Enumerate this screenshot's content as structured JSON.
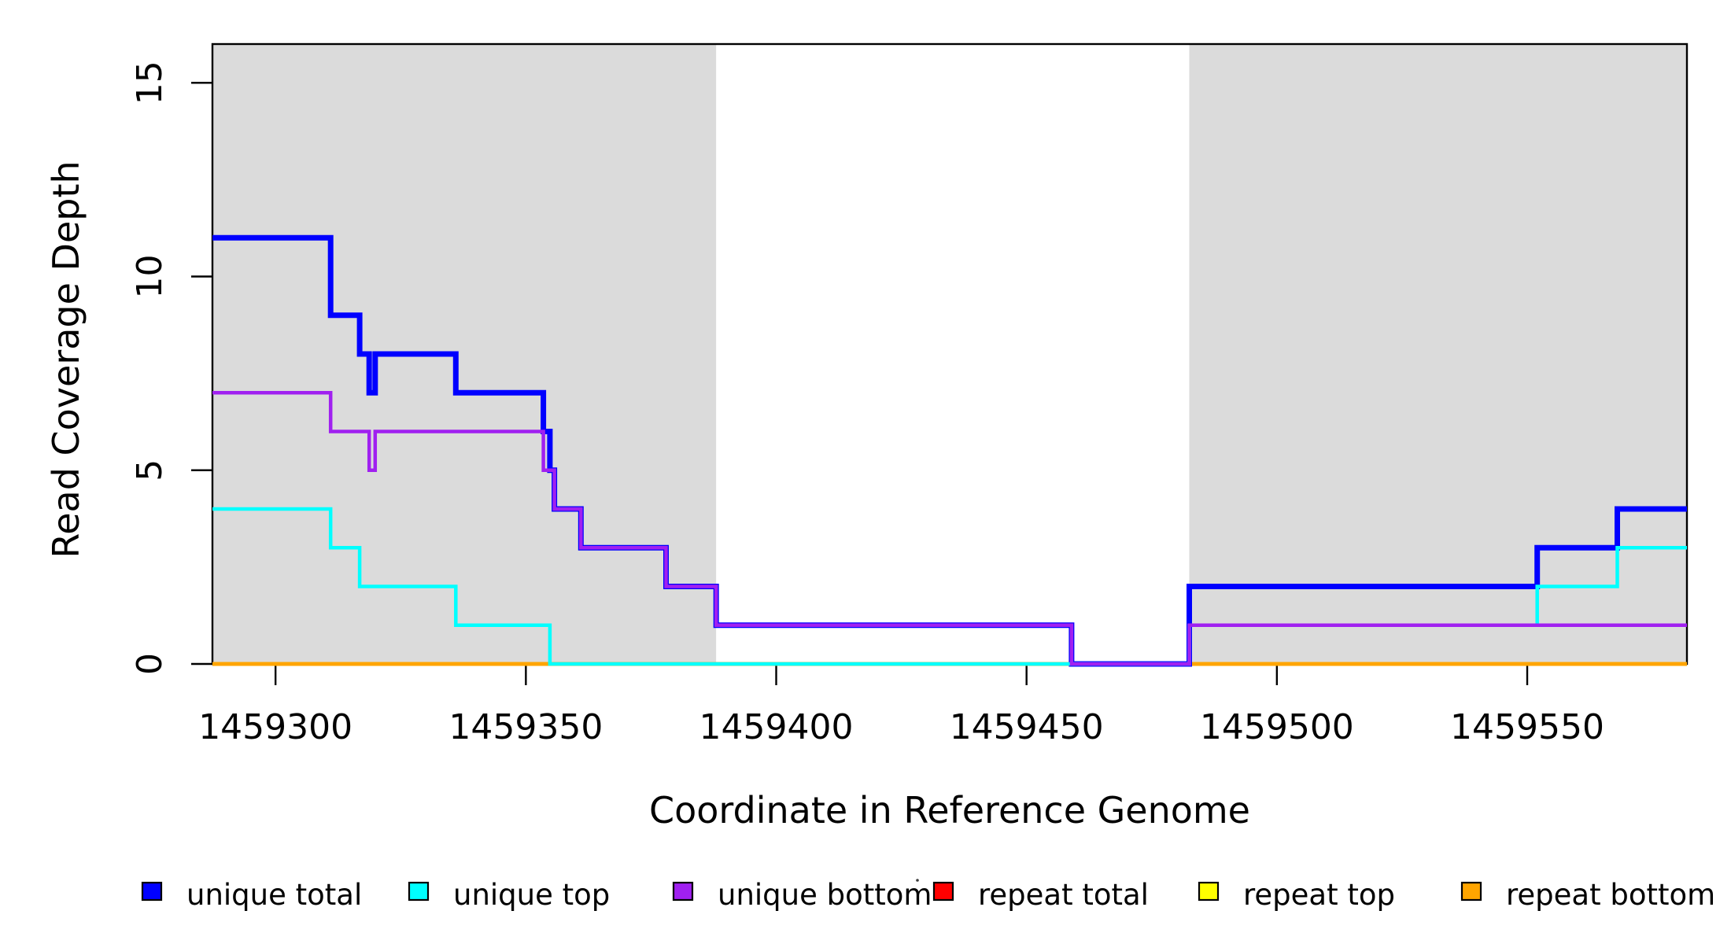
{
  "figure": {
    "kind": "R base graphics step plot",
    "background": "#ffffff"
  },
  "chart_data": {
    "type": "line",
    "step_mode": "step-after",
    "title": "",
    "xlabel": "Coordinate in Reference Genome",
    "ylabel": "Read Coverage Depth",
    "xlim": [
      1459287.4,
      1459581.9
    ],
    "ylim": [
      0,
      16
    ],
    "x_ticks": [
      1459300,
      1459350,
      1459400,
      1459450,
      1459500,
      1459550
    ],
    "x_tick_labels": [
      "1459300",
      "1459350",
      "1459400",
      "1459450",
      "1459500",
      "1459550"
    ],
    "y_ticks": [
      0,
      5,
      10,
      15
    ],
    "y_tick_labels": [
      "0",
      "5",
      "10",
      "15"
    ],
    "grid": false,
    "shaded_regions": [
      {
        "from": 1459287.4,
        "to": 1459388,
        "color": "#DBDBDB"
      },
      {
        "from": 1459482.5,
        "to": 1459581.9,
        "color": "#DBDBDB"
      }
    ],
    "series": [
      {
        "name": "repeat total",
        "color": "#FF0000",
        "width": 4.5,
        "points": [
          [
            1459287.4,
            0
          ]
        ]
      },
      {
        "name": "repeat top",
        "color": "#FFFF00",
        "width": 4.5,
        "points": [
          [
            1459287.4,
            0
          ]
        ]
      },
      {
        "name": "repeat bottom",
        "color": "#FFA500",
        "width": 5,
        "points": [
          [
            1459287.4,
            0
          ]
        ]
      },
      {
        "name": "unique total",
        "color": "#0000FF",
        "width": 7,
        "points": [
          [
            1459287.4,
            11
          ],
          [
            1459311,
            9
          ],
          [
            1459316.8,
            8
          ],
          [
            1459318.7,
            7
          ],
          [
            1459319.9,
            8
          ],
          [
            1459336,
            7
          ],
          [
            1459353.5,
            6
          ],
          [
            1459354.8,
            5
          ],
          [
            1459355.7,
            4
          ],
          [
            1459361,
            3
          ],
          [
            1459378,
            2
          ],
          [
            1459388,
            1
          ],
          [
            1459459,
            0
          ],
          [
            1459482.5,
            2
          ],
          [
            1459552,
            3
          ],
          [
            1459568,
            4
          ]
        ]
      },
      {
        "name": "unique top",
        "color": "#00FFFF",
        "width": 4.5,
        "points": [
          [
            1459287.4,
            4
          ],
          [
            1459311,
            3
          ],
          [
            1459316.8,
            2
          ],
          [
            1459336,
            1
          ],
          [
            1459354.8,
            0
          ],
          [
            1459482.5,
            1
          ],
          [
            1459552,
            2
          ],
          [
            1459568,
            3
          ]
        ]
      },
      {
        "name": "unique bottom",
        "color": "#A020F0",
        "width": 4.5,
        "points": [
          [
            1459287.4,
            7
          ],
          [
            1459311,
            6
          ],
          [
            1459318.7,
            5
          ],
          [
            1459319.9,
            6
          ],
          [
            1459353.5,
            5
          ],
          [
            1459355.7,
            4
          ],
          [
            1459361,
            3
          ],
          [
            1459378,
            2
          ],
          [
            1459388,
            1
          ],
          [
            1459459,
            0
          ],
          [
            1459482.5,
            1
          ]
        ]
      }
    ],
    "legend": {
      "position": "bottom",
      "items": [
        {
          "label": "unique total",
          "color": "#0000FF"
        },
        {
          "label": "unique top",
          "color": "#00FFFF"
        },
        {
          "label": "unique bottom",
          "color": "#A020F0"
        },
        {
          "label": "repeat total",
          "color": "#FF0000"
        },
        {
          "label": "repeat top",
          "color": "#FFFF00"
        },
        {
          "label": "repeat bottom",
          "color": "#FFA500"
        }
      ]
    },
    "annotations": {
      "stray_mark": {
        "present": true,
        "color": "#3a3a3a"
      }
    }
  }
}
